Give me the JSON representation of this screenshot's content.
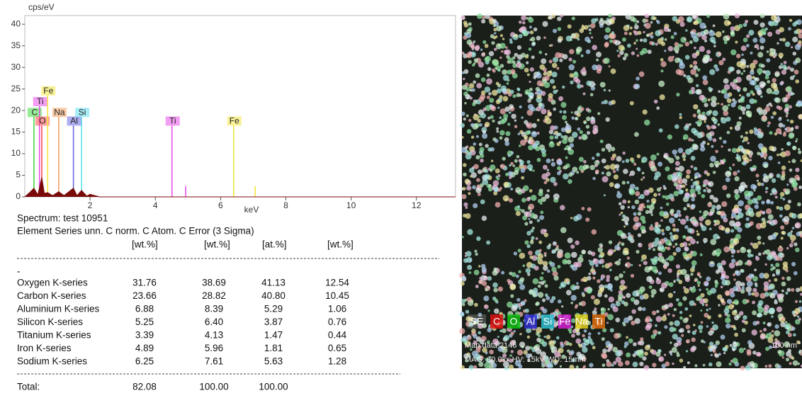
{
  "chart_data": {
    "type": "spectrum",
    "y_label": "cps/eV",
    "x_label": "keV",
    "xlim": [
      0,
      13.2
    ],
    "xticks": [
      2,
      4,
      6,
      8,
      10,
      12
    ],
    "ylim": [
      0,
      42
    ],
    "yticks": [
      0,
      5,
      10,
      15,
      20,
      25,
      30,
      35,
      40
    ],
    "color": "#7a0a0a",
    "x": [
      0,
      0.15,
      0.28,
      0.4,
      0.52,
      0.6,
      0.7,
      0.85,
      1.04,
      1.2,
      1.49,
      1.6,
      1.74,
      1.9,
      2.0,
      2.1,
      2.3,
      4.5,
      13.2
    ],
    "values": [
      0,
      1,
      2,
      0.5,
      4.5,
      0.8,
      1,
      0.3,
      1.2,
      0.3,
      2,
      0.3,
      1.5,
      0.2,
      0.6,
      0.4,
      0,
      0,
      0
    ],
    "markers": [
      {
        "label": "C",
        "x": 0.28,
        "height": 18.5,
        "color": "#3fdc3f"
      },
      {
        "label": "Ti",
        "x": 0.45,
        "height": 21,
        "color": "#e84fe8"
      },
      {
        "label": "O",
        "x": 0.52,
        "height": 16.5,
        "color": "#ff4d4d"
      },
      {
        "label": "Fe",
        "x": 0.7,
        "height": 23.5,
        "color": "#f2e640"
      },
      {
        "label": "Na",
        "x": 1.04,
        "height": 18.5,
        "color": "#f2a060"
      },
      {
        "label": "Al",
        "x": 1.49,
        "height": 16.5,
        "color": "#6a6ae6"
      },
      {
        "label": "Si",
        "x": 1.74,
        "height": 18.5,
        "color": "#5fe0f0"
      },
      {
        "label": "Ti",
        "x": 4.51,
        "height": 16.5,
        "color": "#e84fe8"
      },
      {
        "label": "Fe",
        "x": 6.4,
        "height": 16.5,
        "color": "#f2e640"
      },
      {
        "x": 4.93,
        "height": 2.5,
        "color": "#e84fe8"
      },
      {
        "x": 7.06,
        "height": 2.5,
        "color": "#f2e640"
      }
    ]
  },
  "table": {
    "title": "Spectrum: test 10951",
    "header": "Element Series unn. C norm. C Atom. C Error (3 Sigma)",
    "units": [
      "[wt.%]",
      "[wt.%]",
      "[at.%]",
      "[wt.%]"
    ],
    "separator": "-",
    "rows": [
      [
        "Oxygen K-series",
        "31.76",
        "38.69",
        "41.13",
        "12.54"
      ],
      [
        "Carbon K-series",
        "23.66",
        "28.82",
        "40.80",
        "10.45"
      ],
      [
        "Aluminium K-series",
        "6.88",
        "8.39",
        "5.29",
        "1.06"
      ],
      [
        "Silicon K-series",
        "5.25",
        "6.40",
        "3.87",
        "0.76"
      ],
      [
        "Titanium K-series",
        "3.39",
        "4.13",
        "1.47",
        "0.44"
      ],
      [
        "Iron K-series",
        "4.89",
        "5.96",
        "1.81",
        "0.65"
      ],
      [
        "Sodium K-series",
        "6.25",
        "7.61",
        "5.63",
        "1.28"
      ]
    ],
    "total": [
      "Total:",
      "82.08",
      "100.00",
      "100.00"
    ]
  },
  "map": {
    "legend": [
      "SE",
      "C",
      "O",
      "Al",
      "Si",
      "Fe",
      "Na",
      "Ti"
    ],
    "legend_colors": [
      "#ffffff",
      "#e01010",
      "#10c010",
      "#3030d0",
      "#30c0d0",
      "#d020d0",
      "#e0d020",
      "#e07010"
    ],
    "caption": "Map data 2146",
    "scale": "100 nm",
    "info": "MAG: 60.0kx HV: 15kV WD: 15mm"
  }
}
